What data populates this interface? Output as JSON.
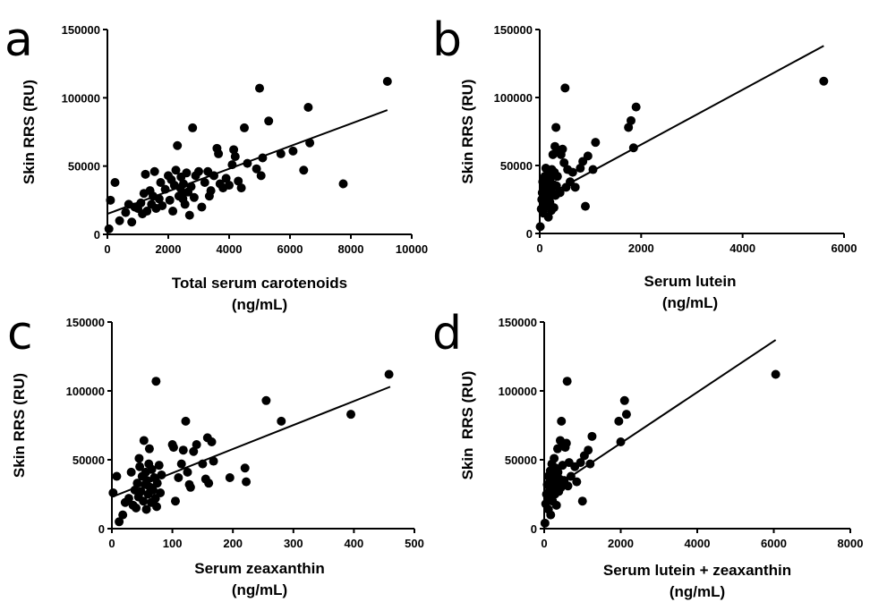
{
  "chart_data": [
    {
      "panel": "a",
      "type": "scatter",
      "xlabel": [
        "Total serum carotenoids",
        "(ng/mL)"
      ],
      "ylabel": "Skin RRS (RU)",
      "xlim": [
        0,
        10000
      ],
      "ylim": [
        0,
        150000
      ],
      "xticks": [
        0,
        2000,
        4000,
        6000,
        8000,
        10000
      ],
      "yticks": [
        0,
        50000,
        100000,
        150000
      ],
      "fit_line": [
        [
          0,
          15000
        ],
        [
          9200,
          91000
        ]
      ],
      "points": [
        [
          50,
          4000
        ],
        [
          100,
          25000
        ],
        [
          250,
          38000
        ],
        [
          400,
          10000
        ],
        [
          600,
          16000
        ],
        [
          700,
          22000
        ],
        [
          800,
          9000
        ],
        [
          900,
          20000
        ],
        [
          1000,
          19000
        ],
        [
          1100,
          23000
        ],
        [
          1150,
          15000
        ],
        [
          1200,
          30000
        ],
        [
          1250,
          44000
        ],
        [
          1300,
          17000
        ],
        [
          1400,
          32000
        ],
        [
          1450,
          22000
        ],
        [
          1500,
          28000
        ],
        [
          1550,
          46000
        ],
        [
          1600,
          19000
        ],
        [
          1700,
          26000
        ],
        [
          1750,
          38000
        ],
        [
          1800,
          21000
        ],
        [
          1900,
          33000
        ],
        [
          2000,
          43000
        ],
        [
          2050,
          25000
        ],
        [
          2100,
          40000
        ],
        [
          2150,
          17000
        ],
        [
          2200,
          36000
        ],
        [
          2250,
          47000
        ],
        [
          2300,
          65000
        ],
        [
          2350,
          28000
        ],
        [
          2400,
          34000
        ],
        [
          2420,
          42000
        ],
        [
          2450,
          30000
        ],
        [
          2480,
          26000
        ],
        [
          2500,
          37000
        ],
        [
          2550,
          22000
        ],
        [
          2600,
          45000
        ],
        [
          2650,
          31000
        ],
        [
          2700,
          14000
        ],
        [
          2750,
          35000
        ],
        [
          2800,
          78000
        ],
        [
          2850,
          27000
        ],
        [
          2900,
          43000
        ],
        [
          3000,
          46000
        ],
        [
          3100,
          20000
        ],
        [
          3200,
          38000
        ],
        [
          3300,
          46000
        ],
        [
          3350,
          28000
        ],
        [
          3400,
          32000
        ],
        [
          3500,
          43000
        ],
        [
          3600,
          63000
        ],
        [
          3650,
          59000
        ],
        [
          3700,
          37000
        ],
        [
          3800,
          34000
        ],
        [
          3900,
          41000
        ],
        [
          4000,
          36000
        ],
        [
          4100,
          51000
        ],
        [
          4150,
          62000
        ],
        [
          4200,
          57000
        ],
        [
          4300,
          39000
        ],
        [
          4400,
          34000
        ],
        [
          4500,
          78000
        ],
        [
          4600,
          52000
        ],
        [
          4900,
          48000
        ],
        [
          5000,
          107000
        ],
        [
          5050,
          43000
        ],
        [
          5100,
          56000
        ],
        [
          5300,
          83000
        ],
        [
          5700,
          59000
        ],
        [
          6100,
          61000
        ],
        [
          6450,
          47000
        ],
        [
          6600,
          93000
        ],
        [
          6650,
          67000
        ],
        [
          7750,
          37000
        ],
        [
          9200,
          112000
        ]
      ]
    },
    {
      "panel": "b",
      "type": "scatter",
      "xlabel": [
        "Serum lutein",
        "(ng/mL)"
      ],
      "ylabel": "Skin RRS (RU)",
      "xlim": [
        0,
        6000
      ],
      "ylim": [
        0,
        150000
      ],
      "xticks": [
        0,
        2000,
        4000,
        6000
      ],
      "yticks": [
        0,
        50000,
        100000,
        150000
      ],
      "fit_line": [
        [
          0,
          25000
        ],
        [
          5600,
          138000
        ]
      ],
      "points": [
        [
          10,
          5000
        ],
        [
          30,
          18000
        ],
        [
          40,
          25000
        ],
        [
          50,
          30000
        ],
        [
          60,
          38000
        ],
        [
          70,
          15000
        ],
        [
          80,
          22000
        ],
        [
          90,
          34000
        ],
        [
          100,
          42000
        ],
        [
          110,
          27000
        ],
        [
          120,
          48000
        ],
        [
          130,
          20000
        ],
        [
          140,
          36000
        ],
        [
          150,
          31000
        ],
        [
          160,
          44000
        ],
        [
          170,
          12000
        ],
        [
          180,
          26000
        ],
        [
          190,
          39000
        ],
        [
          200,
          23000
        ],
        [
          210,
          41000
        ],
        [
          220,
          33000
        ],
        [
          230,
          17000
        ],
        [
          240,
          47000
        ],
        [
          250,
          29000
        ],
        [
          260,
          58000
        ],
        [
          270,
          36000
        ],
        [
          280,
          19000
        ],
        [
          290,
          45000
        ],
        [
          300,
          64000
        ],
        [
          310,
          28000
        ],
        [
          320,
          78000
        ],
        [
          330,
          35000
        ],
        [
          350,
          42000
        ],
        [
          370,
          61000
        ],
        [
          400,
          30000
        ],
        [
          420,
          58000
        ],
        [
          450,
          62000
        ],
        [
          480,
          52000
        ],
        [
          500,
          107000
        ],
        [
          520,
          34000
        ],
        [
          550,
          47000
        ],
        [
          600,
          38000
        ],
        [
          650,
          45000
        ],
        [
          700,
          34000
        ],
        [
          800,
          48000
        ],
        [
          850,
          53000
        ],
        [
          900,
          20000
        ],
        [
          950,
          57000
        ],
        [
          1050,
          47000
        ],
        [
          1100,
          67000
        ],
        [
          1750,
          78000
        ],
        [
          1800,
          83000
        ],
        [
          1850,
          63000
        ],
        [
          1900,
          93000
        ],
        [
          5600,
          112000
        ]
      ]
    },
    {
      "panel": "c",
      "type": "scatter",
      "xlabel": [
        "Serum zeaxanthin",
        "(ng/mL)"
      ],
      "ylabel": "Skin RRS (RU)",
      "xlim": [
        0,
        500
      ],
      "ylim": [
        0,
        150000
      ],
      "xticks": [
        0,
        100,
        200,
        300,
        400,
        500
      ],
      "yticks": [
        0,
        50000,
        100000,
        150000
      ],
      "fit_line": [
        [
          0,
          23000
        ],
        [
          460,
          103000
        ]
      ],
      "points": [
        [
          2,
          26000
        ],
        [
          8,
          38000
        ],
        [
          12,
          5000
        ],
        [
          18,
          10000
        ],
        [
          22,
          19000
        ],
        [
          28,
          22000
        ],
        [
          32,
          41000
        ],
        [
          35,
          17000
        ],
        [
          38,
          28000
        ],
        [
          40,
          15000
        ],
        [
          42,
          33000
        ],
        [
          44,
          23000
        ],
        [
          45,
          51000
        ],
        [
          46,
          45000
        ],
        [
          48,
          27000
        ],
        [
          50,
          38000
        ],
        [
          52,
          20000
        ],
        [
          53,
          64000
        ],
        [
          55,
          32000
        ],
        [
          56,
          41000
        ],
        [
          57,
          14000
        ],
        [
          58,
          35000
        ],
        [
          60,
          25000
        ],
        [
          61,
          47000
        ],
        [
          62,
          58000
        ],
        [
          63,
          30000
        ],
        [
          65,
          19000
        ],
        [
          66,
          43000
        ],
        [
          68,
          28000
        ],
        [
          70,
          37000
        ],
        [
          72,
          22000
        ],
        [
          73,
          107000
        ],
        [
          74,
          16000
        ],
        [
          75,
          33000
        ],
        [
          78,
          46000
        ],
        [
          80,
          26000
        ],
        [
          82,
          39000
        ],
        [
          100,
          61000
        ],
        [
          102,
          59000
        ],
        [
          105,
          20000
        ],
        [
          110,
          37000
        ],
        [
          115,
          47000
        ],
        [
          118,
          57000
        ],
        [
          122,
          78000
        ],
        [
          125,
          41000
        ],
        [
          128,
          32000
        ],
        [
          130,
          30000
        ],
        [
          135,
          56000
        ],
        [
          140,
          61000
        ],
        [
          150,
          47000
        ],
        [
          155,
          36000
        ],
        [
          158,
          66000
        ],
        [
          160,
          33000
        ],
        [
          165,
          63000
        ],
        [
          168,
          49000
        ],
        [
          195,
          37000
        ],
        [
          220,
          44000
        ],
        [
          222,
          34000
        ],
        [
          255,
          93000
        ],
        [
          280,
          78000
        ],
        [
          395,
          83000
        ],
        [
          458,
          112000
        ]
      ]
    },
    {
      "panel": "d",
      "type": "scatter",
      "xlabel": [
        "Serum lutein + zeaxanthin",
        "(ng/mL)"
      ],
      "ylabel": "Skin  RRS (RU)",
      "xlim": [
        0,
        8000
      ],
      "ylim": [
        0,
        150000
      ],
      "xticks": [
        0,
        2000,
        4000,
        6000,
        8000
      ],
      "yticks": [
        0,
        50000,
        100000,
        150000
      ],
      "fit_line": [
        [
          0,
          25000
        ],
        [
          6050,
          137000
        ]
      ],
      "points": [
        [
          20,
          4000
        ],
        [
          40,
          18000
        ],
        [
          60,
          25000
        ],
        [
          80,
          32000
        ],
        [
          100,
          38000
        ],
        [
          110,
          14000
        ],
        [
          120,
          22000
        ],
        [
          140,
          28000
        ],
        [
          160,
          42000
        ],
        [
          170,
          10000
        ],
        [
          180,
          35000
        ],
        [
          200,
          47000
        ],
        [
          220,
          20000
        ],
        [
          240,
          30000
        ],
        [
          250,
          38000
        ],
        [
          260,
          51000
        ],
        [
          280,
          25000
        ],
        [
          300,
          44000
        ],
        [
          320,
          17000
        ],
        [
          330,
          33000
        ],
        [
          350,
          58000
        ],
        [
          360,
          41000
        ],
        [
          380,
          27000
        ],
        [
          400,
          36000
        ],
        [
          420,
          64000
        ],
        [
          440,
          30000
        ],
        [
          450,
          78000
        ],
        [
          480,
          46000
        ],
        [
          500,
          61000
        ],
        [
          520,
          35000
        ],
        [
          550,
          59000
        ],
        [
          580,
          62000
        ],
        [
          600,
          107000
        ],
        [
          620,
          31000
        ],
        [
          650,
          48000
        ],
        [
          700,
          38000
        ],
        [
          800,
          45000
        ],
        [
          850,
          34000
        ],
        [
          950,
          48000
        ],
        [
          1000,
          20000
        ],
        [
          1050,
          53000
        ],
        [
          1150,
          57000
        ],
        [
          1200,
          47000
        ],
        [
          1250,
          67000
        ],
        [
          1950,
          78000
        ],
        [
          2000,
          63000
        ],
        [
          2100,
          93000
        ],
        [
          2150,
          83000
        ],
        [
          6050,
          112000
        ]
      ]
    }
  ]
}
